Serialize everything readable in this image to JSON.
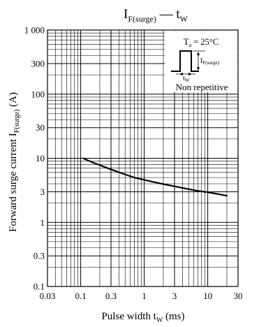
{
  "chart_data": {
    "type": "line",
    "title": {
      "main": "I",
      "sub": "F(surge)",
      "sep": " — ",
      "var": "t",
      "var_sub": "W"
    },
    "xlabel": {
      "main": "Pulse width  t",
      "sub": "W",
      "unit": "  (ms)"
    },
    "ylabel": {
      "main": "Forward surge current  I",
      "sub": "F(surge)",
      "unit": "  (A)"
    },
    "x_scale": "log",
    "y_scale": "log",
    "xlim": [
      0.03,
      30
    ],
    "ylim": [
      0.1,
      1000
    ],
    "x_ticks": [
      {
        "value": 0.03,
        "label": "0.03"
      },
      {
        "value": 0.1,
        "label": "0.1"
      },
      {
        "value": 0.3,
        "label": "0.3"
      },
      {
        "value": 1,
        "label": "1"
      },
      {
        "value": 3,
        "label": "3"
      },
      {
        "value": 10,
        "label": "10"
      },
      {
        "value": 30,
        "label": "30"
      }
    ],
    "y_ticks": [
      {
        "value": 0.1,
        "label": "0.1"
      },
      {
        "value": 0.3,
        "label": "0.3"
      },
      {
        "value": 1,
        "label": "1"
      },
      {
        "value": 3,
        "label": "3"
      },
      {
        "value": 10,
        "label": "10"
      },
      {
        "value": 30,
        "label": "30"
      },
      {
        "value": 100,
        "label": "100"
      },
      {
        "value": 300,
        "label": "300"
      },
      {
        "value": 1000,
        "label": "1 000"
      }
    ],
    "grid": true,
    "series": [
      {
        "x": [
          0.11,
          0.15,
          0.2,
          0.3,
          0.5,
          0.7,
          1,
          1.5,
          2,
          3,
          5,
          7,
          10,
          15,
          20
        ],
        "y": [
          10,
          8.7,
          7.8,
          6.7,
          5.6,
          5.0,
          4.6,
          4.2,
          3.95,
          3.65,
          3.3,
          3.1,
          2.95,
          2.75,
          2.6
        ]
      }
    ],
    "annotation": {
      "condition": "T",
      "condition_sub": "a",
      "condition_value": " = 25°C",
      "pulse_label": "I",
      "pulse_label_sub": "F(surge)",
      "width_label": "t",
      "width_label_sub": "W",
      "note": "Non repetitive"
    }
  }
}
